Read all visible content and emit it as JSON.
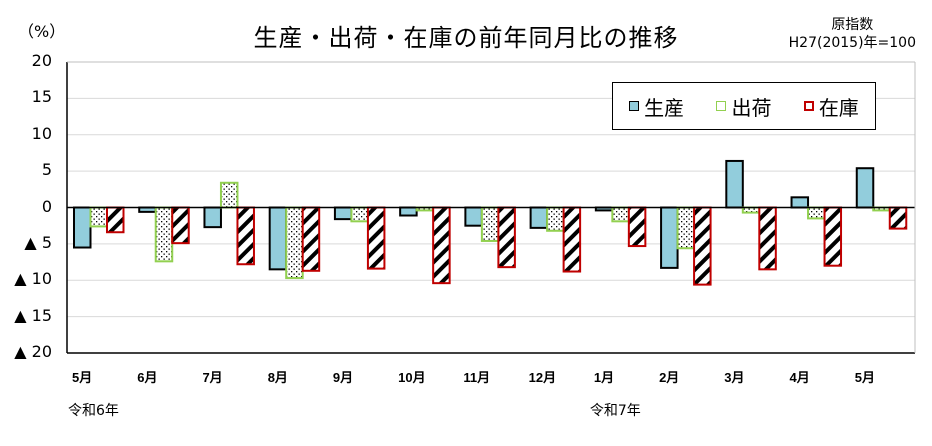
{
  "chart_data": {
    "type": "bar",
    "title": "生産・出荷・在庫の前年同月比の推移",
    "unit_label": "（%）",
    "base_note": [
      "原指数",
      "H27(2015)年=100"
    ],
    "xlabel": "",
    "ylabel": "（%）",
    "ylim": [
      -20,
      20
    ],
    "y_ticks": [
      20,
      15,
      10,
      5,
      0,
      -5,
      -10,
      -15,
      -20
    ],
    "y_tick_labels": [
      "20",
      "15",
      "10",
      "5",
      "0",
      "▲ 5",
      "▲ 10",
      "▲ 15",
      "▲ 20"
    ],
    "grid": true,
    "legend_position": "top-right inside",
    "categories": [
      "5月",
      "6月",
      "7月",
      "8月",
      "9月",
      "10月",
      "11月",
      "12月",
      "1月",
      "2月",
      "3月",
      "4月",
      "5月"
    ],
    "era_labels": [
      {
        "label": "令和6年",
        "category_index": 0
      },
      {
        "label": "令和7年",
        "category_index": 8
      }
    ],
    "series": [
      {
        "name": "生産",
        "fill": "#92CDDC",
        "border": "#000000",
        "pattern": "solid",
        "values": [
          -5.5,
          -0.6,
          -2.7,
          -8.5,
          -1.6,
          -1.1,
          -2.5,
          -2.8,
          -0.4,
          -8.3,
          6.4,
          1.4,
          5.4
        ]
      },
      {
        "name": "出荷",
        "fill": "#FFFFFF",
        "border": "#92D050",
        "pattern": "dots",
        "values": [
          -2.6,
          -7.4,
          3.4,
          -9.7,
          -1.9,
          -0.4,
          -4.6,
          -3.2,
          -1.9,
          -5.6,
          -0.7,
          -1.5,
          -0.4
        ]
      },
      {
        "name": "在庫",
        "fill": "#FFFFFF",
        "border": "#C00000",
        "pattern": "diagonal-stripes",
        "values": [
          -3.4,
          -4.9,
          -7.8,
          -8.7,
          -8.4,
          -10.4,
          -8.2,
          -8.8,
          -5.3,
          -10.6,
          -8.5,
          -8.0,
          -2.9
        ]
      }
    ]
  },
  "legend": {
    "items": [
      {
        "label": "生産",
        "color": "#92CDDC",
        "border": "#000000"
      },
      {
        "label": "出荷",
        "color": "#FFFFFF",
        "border": "#92D050"
      },
      {
        "label": "在庫",
        "color": "#FFFFFF",
        "border": "#C00000"
      }
    ]
  }
}
